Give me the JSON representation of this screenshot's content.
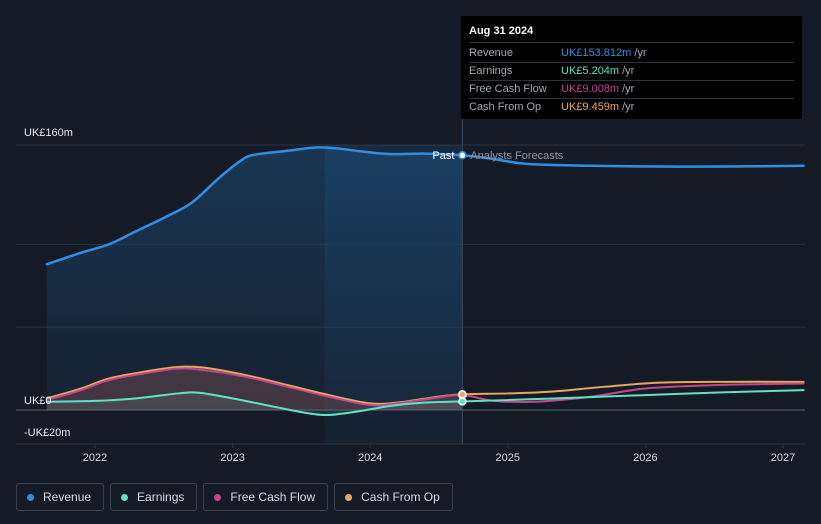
{
  "chart_data": {
    "type": "line",
    "title": "",
    "xlabel": "",
    "ylabel": "",
    "y_unit_labels": {
      "top": "UK£160m",
      "zero": "UK£0",
      "bottom": "-UK£20m"
    },
    "ylim": [
      -20,
      160
    ],
    "xlim": [
      2021.62,
      2027.15
    ],
    "x_ticks": [
      {
        "value": 2022,
        "label": "2022"
      },
      {
        "value": 2023,
        "label": "2023"
      },
      {
        "value": 2024,
        "label": "2024"
      },
      {
        "value": 2025,
        "label": "2025"
      },
      {
        "value": 2026,
        "label": "2026"
      },
      {
        "value": 2027,
        "label": "2027"
      }
    ],
    "divider_x": 2024.67,
    "shade_start_x": 2023.67,
    "past_label": "Past",
    "forecast_label": "Analysts Forecasts",
    "series": [
      {
        "name": "Revenue",
        "color": "#2f8ee2",
        "fill": true,
        "x": [
          2021.65,
          2021.9,
          2022.1,
          2022.3,
          2022.5,
          2022.7,
          2022.9,
          2023.05,
          2023.15,
          2023.4,
          2023.6,
          2023.75,
          2023.95,
          2024.15,
          2024.4,
          2024.67,
          2024.9,
          2025.15,
          2025.6,
          2026.1,
          2026.6,
          2027.15
        ],
        "values": [
          88,
          95,
          100,
          108,
          116,
          125,
          140,
          150,
          154,
          156.5,
          158.5,
          158,
          156,
          154.5,
          154.8,
          153.8,
          151.5,
          148.5,
          147.5,
          147,
          147,
          147.5
        ]
      },
      {
        "name": "Earnings",
        "color": "#5fe3c7",
        "fill": false,
        "x": [
          2021.65,
          2022.0,
          2022.3,
          2022.6,
          2022.75,
          2023.0,
          2023.3,
          2023.55,
          2023.7,
          2023.9,
          2024.15,
          2024.4,
          2024.67,
          2025.0,
          2025.5,
          2026.0,
          2026.5,
          2027.15
        ],
        "values": [
          5,
          5.5,
          7,
          10,
          10.5,
          7,
          2,
          -2,
          -3,
          -1,
          2.5,
          4.5,
          5.2,
          6,
          7.5,
          9,
          10.5,
          12
        ]
      },
      {
        "name": "Free Cash Flow",
        "color": "#c2458d",
        "fill": false,
        "x": [
          2021.65,
          2021.9,
          2022.1,
          2022.35,
          2022.6,
          2022.8,
          2023.1,
          2023.4,
          2023.7,
          2024.0,
          2024.2,
          2024.45,
          2024.67,
          2024.9,
          2025.2,
          2025.6,
          2026.0,
          2026.5,
          2027.15
        ],
        "values": [
          6,
          12,
          18,
          22,
          25,
          24,
          20,
          14,
          8,
          3,
          4,
          7,
          9,
          5.5,
          5,
          8,
          13,
          15,
          16
        ]
      },
      {
        "name": "Cash From Op",
        "color": "#e8a85c",
        "fill": false,
        "x": [
          2021.65,
          2021.9,
          2022.1,
          2022.35,
          2022.6,
          2022.8,
          2023.1,
          2023.4,
          2023.7,
          2024.0,
          2024.2,
          2024.45,
          2024.67,
          2025.0,
          2025.3,
          2025.7,
          2026.1,
          2026.6,
          2027.15
        ],
        "values": [
          7,
          13,
          19,
          23,
          26,
          25.5,
          21,
          15,
          9,
          4,
          4.5,
          7.5,
          9.5,
          10,
          11,
          14,
          16.5,
          17,
          17
        ]
      }
    ]
  },
  "tooltip": {
    "date": "Aug 31 2024",
    "rows": [
      {
        "label": "Revenue",
        "value": "UK£153.812m",
        "unit": "/yr",
        "color": "#2f8ee2"
      },
      {
        "label": "Earnings",
        "value": "UK£5.204m",
        "unit": "/yr",
        "color": "#5fe3c7"
      },
      {
        "label": "Free Cash Flow",
        "value": "UK£9.008m",
        "unit": "/yr",
        "color": "#c2458d"
      },
      {
        "label": "Cash From Op",
        "value": "UK£9.459m",
        "unit": "/yr",
        "color": "#e8a85c"
      }
    ]
  },
  "legend": [
    {
      "label": "Revenue",
      "color": "#2f8ee2"
    },
    {
      "label": "Earnings",
      "color": "#5fe3c7"
    },
    {
      "label": "Free Cash Flow",
      "color": "#c2458d"
    },
    {
      "label": "Cash From Op",
      "color": "#e8a85c"
    }
  ]
}
